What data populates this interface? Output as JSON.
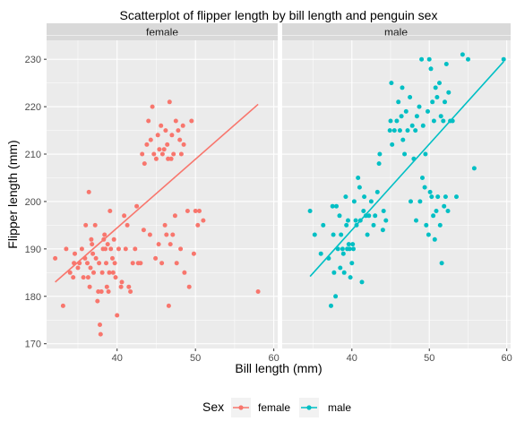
{
  "chart_data": {
    "type": "scatter",
    "title": "Scatterplot of flipper length by bill length and penguin sex",
    "xlabel": "Bill length (mm)",
    "ylabel": "Flipper length (mm)",
    "xlim": [
      31,
      60.5
    ],
    "ylim": [
      169,
      234
    ],
    "x_ticks": [
      40,
      50,
      60
    ],
    "y_ticks": [
      170,
      180,
      190,
      200,
      210,
      220,
      230
    ],
    "x_tick_labels": [
      "40",
      "50",
      "60"
    ],
    "y_tick_labels": [
      "170",
      "180",
      "190",
      "200",
      "210",
      "220",
      "230"
    ],
    "grid": true,
    "legend": {
      "title": "Sex",
      "position": "bottom",
      "entries": [
        "female",
        "male"
      ]
    },
    "panels": [
      {
        "label": "female",
        "color": "#F8766D",
        "trend": {
          "x": [
            32.1,
            58.0
          ],
          "y": [
            183,
            220.5
          ]
        },
        "points": [
          [
            32.1,
            188
          ],
          [
            33.1,
            178
          ],
          [
            33.5,
            190
          ],
          [
            34.0,
            185
          ],
          [
            34.4,
            184
          ],
          [
            34.5,
            187
          ],
          [
            34.6,
            189
          ],
          [
            35.0,
            186
          ],
          [
            35.2,
            187
          ],
          [
            35.5,
            190
          ],
          [
            35.7,
            184
          ],
          [
            35.9,
            188
          ],
          [
            36.0,
            195
          ],
          [
            36.2,
            187
          ],
          [
            36.4,
            202
          ],
          [
            36.5,
            182
          ],
          [
            36.6,
            186
          ],
          [
            36.7,
            192
          ],
          [
            36.8,
            191
          ],
          [
            36.9,
            189
          ],
          [
            37.0,
            185
          ],
          [
            37.2,
            195
          ],
          [
            37.3,
            188
          ],
          [
            37.5,
            179
          ],
          [
            37.6,
            181
          ],
          [
            37.7,
            187
          ],
          [
            37.8,
            174
          ],
          [
            37.9,
            172
          ],
          [
            38.0,
            181
          ],
          [
            38.1,
            185
          ],
          [
            38.2,
            190
          ],
          [
            38.3,
            192
          ],
          [
            38.4,
            193
          ],
          [
            38.5,
            190
          ],
          [
            38.6,
            187
          ],
          [
            38.7,
            182
          ],
          [
            38.8,
            191
          ],
          [
            38.9,
            181
          ],
          [
            39.0,
            185
          ],
          [
            39.1,
            198
          ],
          [
            39.2,
            190
          ],
          [
            39.4,
            188
          ],
          [
            39.5,
            185
          ],
          [
            39.6,
            192
          ],
          [
            39.7,
            187
          ],
          [
            39.8,
            184
          ],
          [
            40.0,
            176
          ],
          [
            40.2,
            190
          ],
          [
            40.5,
            182
          ],
          [
            40.6,
            183
          ],
          [
            40.9,
            197
          ],
          [
            41.1,
            190
          ],
          [
            41.3,
            195
          ],
          [
            41.5,
            182
          ],
          [
            41.7,
            181
          ],
          [
            42.0,
            187
          ],
          [
            42.5,
            199
          ],
          [
            42.7,
            187
          ],
          [
            43.0,
            187
          ],
          [
            43.2,
            210
          ],
          [
            43.5,
            208
          ],
          [
            43.8,
            212
          ],
          [
            44.0,
            217
          ],
          [
            44.3,
            213
          ],
          [
            44.5,
            220
          ],
          [
            44.7,
            210
          ],
          [
            45.0,
            209
          ],
          [
            45.2,
            214
          ],
          [
            45.4,
            211
          ],
          [
            45.6,
            216
          ],
          [
            45.8,
            210
          ],
          [
            46.0,
            211
          ],
          [
            46.2,
            215
          ],
          [
            46.4,
            212
          ],
          [
            46.5,
            209
          ],
          [
            46.7,
            221
          ],
          [
            46.9,
            209
          ],
          [
            47.0,
            214
          ],
          [
            47.2,
            210
          ],
          [
            47.5,
            217
          ],
          [
            47.8,
            215
          ],
          [
            48.0,
            213
          ],
          [
            48.2,
            210
          ],
          [
            48.4,
            216
          ],
          [
            48.5,
            212
          ],
          [
            49.0,
            198
          ],
          [
            49.5,
            217
          ],
          [
            50.0,
            198
          ],
          [
            50.5,
            198
          ],
          [
            51.0,
            196
          ],
          [
            42.3,
            190
          ],
          [
            43.4,
            194
          ],
          [
            44.2,
            193
          ],
          [
            44.9,
            188
          ],
          [
            45.3,
            191
          ],
          [
            45.7,
            187
          ],
          [
            46.1,
            195
          ],
          [
            46.3,
            193
          ],
          [
            46.6,
            178
          ],
          [
            46.8,
            191
          ],
          [
            47.1,
            193
          ],
          [
            47.4,
            197
          ],
          [
            47.6,
            187
          ],
          [
            48.1,
            190
          ],
          [
            48.6,
            185
          ],
          [
            49.2,
            182
          ],
          [
            49.8,
            189
          ],
          [
            50.3,
            195
          ],
          [
            58.0,
            181
          ],
          [
            36.3,
            184
          ]
        ]
      },
      {
        "label": "male",
        "color": "#00BFC4",
        "trend": {
          "x": [
            34.6,
            59.6
          ],
          "y": [
            184.2,
            229.5
          ]
        },
        "points": [
          [
            34.6,
            198
          ],
          [
            35.2,
            193
          ],
          [
            36.0,
            189
          ],
          [
            36.3,
            195
          ],
          [
            37.0,
            188
          ],
          [
            37.3,
            178
          ],
          [
            37.5,
            199
          ],
          [
            37.7,
            185
          ],
          [
            37.9,
            180
          ],
          [
            38.0,
            199
          ],
          [
            38.2,
            190
          ],
          [
            38.4,
            197
          ],
          [
            38.5,
            186
          ],
          [
            38.6,
            193
          ],
          [
            38.8,
            190
          ],
          [
            39.0,
            185
          ],
          [
            39.2,
            201
          ],
          [
            39.3,
            195
          ],
          [
            39.5,
            196
          ],
          [
            39.6,
            191
          ],
          [
            39.7,
            190
          ],
          [
            39.8,
            184
          ],
          [
            40.0,
            187
          ],
          [
            40.2,
            190
          ],
          [
            40.3,
            200
          ],
          [
            40.5,
            196
          ],
          [
            40.6,
            195
          ],
          [
            40.8,
            205
          ],
          [
            41.0,
            203
          ],
          [
            41.1,
            196
          ],
          [
            41.3,
            183
          ],
          [
            41.5,
            198
          ],
          [
            41.8,
            197
          ],
          [
            42.0,
            193
          ],
          [
            42.2,
            197
          ],
          [
            42.5,
            200
          ],
          [
            42.8,
            195
          ],
          [
            43.0,
            197
          ],
          [
            43.3,
            202
          ],
          [
            43.5,
            208
          ],
          [
            43.6,
            210
          ],
          [
            44.0,
            194
          ],
          [
            44.1,
            198
          ],
          [
            44.4,
            196
          ],
          [
            45.0,
            217
          ],
          [
            45.2,
            212
          ],
          [
            45.5,
            215
          ],
          [
            45.8,
            217
          ],
          [
            46.0,
            221
          ],
          [
            46.2,
            215
          ],
          [
            46.4,
            218
          ],
          [
            46.6,
            213
          ],
          [
            46.8,
            210
          ],
          [
            47.0,
            219
          ],
          [
            47.2,
            215
          ],
          [
            47.5,
            222
          ],
          [
            47.8,
            216
          ],
          [
            48.0,
            209
          ],
          [
            48.2,
            215
          ],
          [
            48.4,
            218
          ],
          [
            48.7,
            220
          ],
          [
            49.0,
            230
          ],
          [
            49.2,
            216
          ],
          [
            49.5,
            210
          ],
          [
            49.8,
            219
          ],
          [
            50.0,
            230
          ],
          [
            50.2,
            228
          ],
          [
            50.4,
            221
          ],
          [
            50.6,
            217
          ],
          [
            50.8,
            224
          ],
          [
            51.0,
            222
          ],
          [
            51.3,
            225
          ],
          [
            51.5,
            218
          ],
          [
            51.8,
            217
          ],
          [
            52.0,
            221
          ],
          [
            52.2,
            229
          ],
          [
            52.5,
            223
          ],
          [
            52.7,
            217
          ],
          [
            53.0,
            217
          ],
          [
            54.3,
            231
          ],
          [
            55.0,
            230
          ],
          [
            59.6,
            230
          ],
          [
            48.3,
            196
          ],
          [
            48.8,
            200
          ],
          [
            49.1,
            205
          ],
          [
            49.4,
            203
          ],
          [
            49.6,
            195
          ],
          [
            49.9,
            193
          ],
          [
            50.1,
            202
          ],
          [
            50.3,
            201
          ],
          [
            50.5,
            197
          ],
          [
            50.7,
            192
          ],
          [
            50.9,
            198
          ],
          [
            51.1,
            201
          ],
          [
            51.4,
            195
          ],
          [
            51.6,
            187
          ],
          [
            51.9,
            199
          ],
          [
            52.1,
            201
          ],
          [
            52.4,
            198
          ],
          [
            53.5,
            201
          ],
          [
            55.8,
            207
          ],
          [
            47.6,
            200
          ],
          [
            46.5,
            224
          ],
          [
            45.1,
            225
          ],
          [
            44.9,
            215
          ],
          [
            37.6,
            193
          ],
          [
            38.9,
            189
          ],
          [
            40.1,
            191
          ],
          [
            41.6,
            201
          ],
          [
            39.4,
            190
          ]
        ]
      }
    ]
  }
}
